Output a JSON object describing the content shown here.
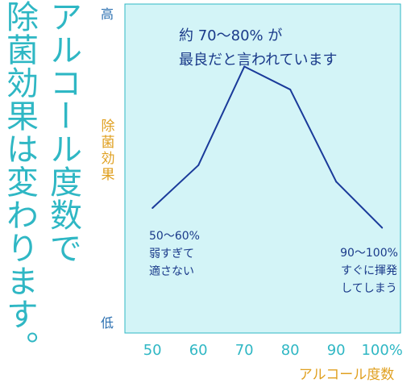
{
  "page_title": {
    "line1": "アルコール度数で",
    "line2": "除菌効果は変わります。"
  },
  "chart_data": {
    "type": "line",
    "x": [
      50,
      60,
      70,
      80,
      90,
      100
    ],
    "x_tick_labels": [
      "50",
      "60",
      "70",
      "80",
      "90",
      "100%"
    ],
    "xlabel": "アルコール度数",
    "ylabel_top": "高",
    "ylabel_mid": "除菌効果",
    "ylabel_bottom": "低",
    "ylim": [
      0,
      100
    ],
    "xlim": [
      44,
      104
    ],
    "series": [
      {
        "x": [
          50,
          60,
          70,
          80,
          90,
          100
        ],
        "values": [
          38,
          51,
          81,
          74,
          46,
          32
        ]
      }
    ],
    "grid": false,
    "annotations": {
      "top": [
        "約 70～80% が",
        "最良だと言われています"
      ],
      "left": [
        "50～60%",
        "弱すぎて",
        "適さない"
      ],
      "right": [
        "90～100%",
        "すぐに揮発",
        "してしまう"
      ]
    },
    "colors": {
      "plot_bg": "#d3f4f7",
      "axis": "#2fb7c4",
      "line": "#1a3a9a",
      "y_label": "#2a6fb0",
      "axis_title": "#e0a020",
      "annotation": "#1a3a8a",
      "title": "#2fb7c4"
    }
  }
}
